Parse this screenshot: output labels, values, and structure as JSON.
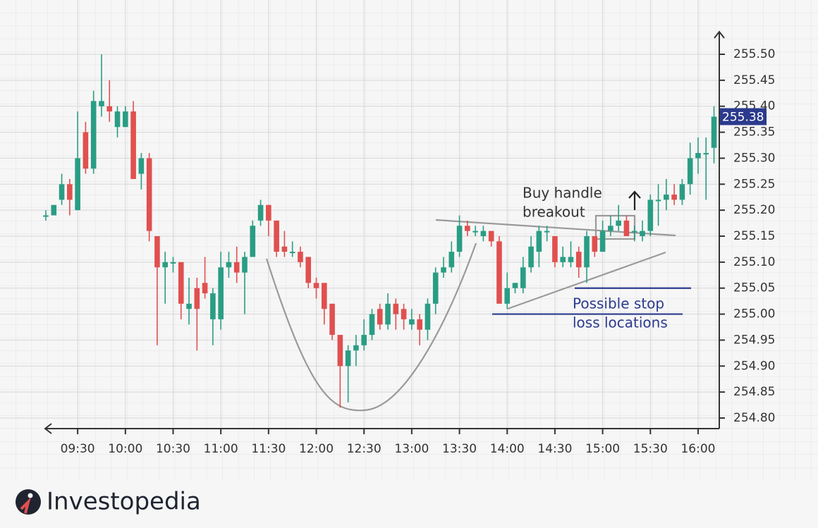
{
  "chart_data": {
    "type": "candlestick",
    "categories": [
      null,
      null,
      null,
      null,
      "09:30",
      null,
      null,
      null,
      null,
      null,
      "10:00",
      null,
      null,
      null,
      null,
      null,
      "10:30",
      null,
      null,
      null,
      null,
      null,
      "11:00",
      null,
      null,
      null,
      null,
      null,
      "11:30",
      null,
      null,
      null,
      null,
      null,
      "12:00",
      null,
      null,
      null,
      null,
      null,
      "12:30",
      null,
      null,
      null,
      null,
      null,
      "13:00",
      null,
      null,
      null,
      null,
      null,
      "13:30",
      null,
      null,
      null,
      null,
      null,
      "14:00",
      null,
      null,
      null,
      null,
      null,
      "14:30",
      null,
      null,
      null,
      null,
      null,
      "15:00",
      null,
      null,
      null,
      null,
      null,
      "15:30",
      null,
      null,
      null,
      null,
      null,
      "16:00",
      null,
      null
    ],
    "open": [
      255.19,
      255.19,
      255.22,
      255.25,
      255.2,
      255.35,
      255.28,
      255.4,
      255.4,
      255.36,
      255.36,
      255.39,
      255.27,
      255.3,
      255.15,
      255.09,
      255.1,
      255.1,
      255.01,
      255.05,
      255.06,
      254.99,
      254.99,
      255.09,
      255.1,
      255.08,
      255.11,
      255.18,
      255.21,
      255.18,
      255.13,
      255.12,
      255.12,
      255.11,
      255.06,
      255.06,
      255.02,
      254.96,
      254.9,
      254.93,
      254.94,
      254.96,
      255.01,
      254.98,
      255.02,
      255.01,
      254.98,
      254.99,
      254.97,
      255.02,
      255.08,
      255.09,
      255.12,
      255.17,
      255.16,
      255.15,
      255.16,
      255.14,
      255.02,
      255.05,
      255.05,
      255.09,
      255.12,
      255.16,
      255.15,
      255.1,
      255.1,
      255.12,
      255.09,
      255.15,
      255.12,
      255.16,
      255.17,
      255.18,
      255.16,
      255.15,
      255.16,
      255.22,
      255.22,
      255.23,
      255.22,
      255.25,
      255.3,
      255.31,
      255.32
    ],
    "high": [
      255.2,
      255.21,
      255.27,
      255.26,
      255.39,
      255.37,
      255.43,
      255.5,
      255.45,
      255.4,
      255.4,
      255.41,
      255.31,
      255.31,
      255.15,
      255.12,
      255.11,
      255.1,
      255.07,
      255.07,
      255.11,
      255.05,
      255.12,
      255.12,
      255.13,
      255.12,
      255.18,
      255.22,
      255.21,
      255.18,
      255.16,
      255.14,
      255.13,
      255.11,
      255.07,
      255.06,
      255.02,
      254.96,
      254.94,
      254.96,
      254.99,
      255.01,
      255.02,
      255.04,
      255.03,
      255.02,
      255.01,
      255.0,
      255.03,
      255.09,
      255.11,
      255.14,
      255.19,
      255.18,
      255.17,
      255.17,
      255.16,
      255.15,
      255.08,
      255.06,
      255.11,
      255.15,
      255.17,
      255.17,
      255.15,
      255.13,
      255.14,
      255.13,
      255.16,
      255.15,
      255.18,
      255.19,
      255.21,
      255.19,
      255.17,
      255.18,
      255.23,
      255.25,
      255.26,
      255.25,
      255.26,
      255.33,
      255.34,
      255.34,
      255.4
    ],
    "low": [
      255.18,
      255.19,
      255.21,
      255.19,
      255.2,
      255.27,
      255.27,
      255.38,
      255.37,
      255.34,
      255.36,
      255.26,
      255.24,
      255.14,
      254.94,
      255.02,
      255.08,
      254.99,
      254.98,
      254.93,
      255.03,
      254.94,
      254.97,
      255.07,
      255.06,
      255.0,
      255.11,
      255.17,
      255.15,
      255.11,
      255.11,
      255.11,
      255.09,
      255.05,
      255.03,
      254.98,
      254.95,
      254.82,
      254.83,
      254.9,
      254.93,
      254.95,
      254.97,
      254.97,
      254.97,
      254.97,
      254.97,
      254.94,
      254.95,
      255.0,
      255.07,
      255.08,
      255.11,
      255.15,
      255.15,
      255.14,
      255.13,
      255.02,
      255.01,
      255.04,
      255.04,
      255.08,
      255.09,
      255.14,
      255.09,
      255.09,
      255.09,
      255.07,
      255.06,
      255.11,
      255.12,
      255.15,
      255.16,
      255.15,
      255.14,
      255.14,
      255.15,
      255.17,
      255.2,
      255.21,
      255.21,
      255.23,
      255.27,
      255.22,
      255.29
    ],
    "close": [
      255.19,
      255.21,
      255.25,
      255.22,
      255.3,
      255.28,
      255.41,
      255.41,
      255.39,
      255.39,
      255.39,
      255.26,
      255.3,
      255.16,
      255.09,
      255.1,
      255.1,
      255.02,
      255.02,
      255.01,
      255.04,
      255.04,
      255.09,
      255.1,
      255.08,
      255.11,
      255.17,
      255.21,
      255.18,
      255.12,
      255.12,
      255.12,
      255.1,
      255.06,
      255.05,
      255.01,
      254.96,
      254.9,
      254.93,
      254.94,
      254.96,
      255.0,
      254.98,
      255.02,
      255.0,
      254.99,
      254.99,
      254.97,
      255.02,
      255.08,
      255.09,
      255.12,
      255.17,
      255.16,
      255.16,
      255.16,
      255.14,
      255.02,
      255.05,
      255.06,
      255.09,
      255.13,
      255.16,
      255.16,
      255.1,
      255.11,
      255.11,
      255.09,
      255.15,
      255.12,
      255.16,
      255.17,
      255.18,
      255.15,
      255.16,
      255.16,
      255.22,
      255.22,
      255.23,
      255.22,
      255.25,
      255.3,
      255.31,
      255.31,
      255.38
    ],
    "up_color": "#2a9d84",
    "down_color": "#e0504f",
    "ylim": [
      254.8,
      255.5
    ],
    "yticks": [
      {
        "value": 254.8,
        "label": "254.80"
      },
      254.85,
      {
        "value": 254.9,
        "label": "254.90"
      },
      254.95,
      {
        "value": 255.0,
        "label": "255.00"
      },
      255.05,
      {
        "value": 255.1,
        "label": "255.10"
      },
      255.15,
      {
        "value": 255.2,
        "label": "255.20"
      },
      255.25,
      {
        "value": 255.3,
        "label": "255.30"
      },
      255.35,
      {
        "value": 255.4,
        "label": "255.40"
      },
      255.45,
      {
        "value": 255.5,
        "label": "255.50"
      }
    ],
    "current_price": 255.38,
    "stop_levels": [
      255.05,
      255.0
    ],
    "annotations": {
      "breakout": [
        "Buy handle",
        "breakout"
      ],
      "stop_loss": [
        "Possible stop",
        "loss locations"
      ]
    },
    "grid": true
  },
  "brand": "Investopedia"
}
